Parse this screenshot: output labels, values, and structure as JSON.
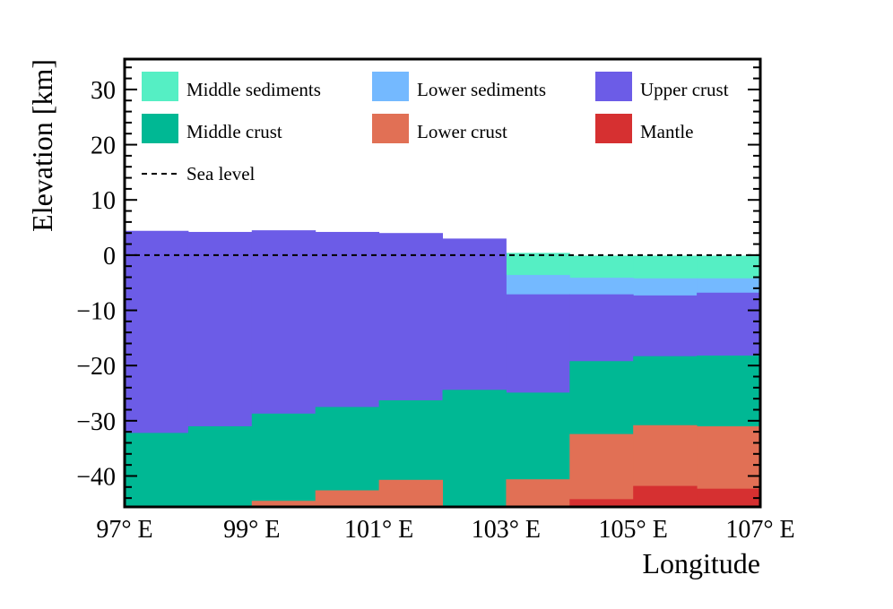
{
  "chart_data": {
    "type": "bar",
    "subtype": "stacked-histogram",
    "xlabel": "Longitude",
    "ylabel": "Elevation [km]",
    "xlim": [
      97,
      107
    ],
    "ylim": [
      -45.6,
      35.5
    ],
    "x_ticks": [
      97,
      99,
      101,
      103,
      105,
      107
    ],
    "x_tick_labels": [
      "97° E",
      "99° E",
      "101° E",
      "103° E",
      "105° E",
      "107° E"
    ],
    "y_ticks": [
      -40,
      -30,
      -20,
      -10,
      0,
      10,
      20,
      30
    ],
    "y_tick_labels": [
      "−40",
      "−30",
      "−20",
      "−10",
      "0",
      "10",
      "20",
      "30"
    ],
    "bin_edges": [
      97,
      98,
      99,
      100,
      101,
      102,
      103,
      104,
      105,
      106,
      107
    ],
    "layers": [
      {
        "name": "Middle sediments",
        "color": "#55efc4",
        "top": [
          null,
          null,
          null,
          null,
          null,
          null,
          0.4,
          -0.1,
          -0.1,
          -0.1
        ]
      },
      {
        "name": "Lower sediments",
        "color": "#74b9ff",
        "top": [
          null,
          null,
          null,
          null,
          null,
          null,
          -3.6,
          -4.1,
          -4.2,
          -4.2
        ]
      },
      {
        "name": "Upper crust",
        "color": "#6c5ce7",
        "top": [
          4.4,
          4.2,
          4.5,
          4.2,
          4.0,
          3.0,
          -7.1,
          -7.1,
          -7.3,
          -6.8
        ]
      },
      {
        "name": "Middle crust",
        "color": "#00b894",
        "top": [
          -32.2,
          -31.0,
          -28.7,
          -27.5,
          -26.3,
          -24.4,
          -24.9,
          -19.2,
          -18.3,
          -18.2
        ]
      },
      {
        "name": "Lower crust",
        "color": "#e17055",
        "top": [
          null,
          null,
          -44.5,
          -42.6,
          -40.7,
          null,
          -40.6,
          -32.4,
          -30.8,
          -31.0
        ]
      },
      {
        "name": "Mantle",
        "color": "#d63031",
        "top": [
          null,
          null,
          null,
          null,
          null,
          null,
          null,
          -44.2,
          -41.8,
          -42.3
        ]
      }
    ],
    "sea_level": {
      "name": "Sea level",
      "value": 0
    },
    "legend": {
      "placement": "top",
      "columns": 3
    }
  }
}
